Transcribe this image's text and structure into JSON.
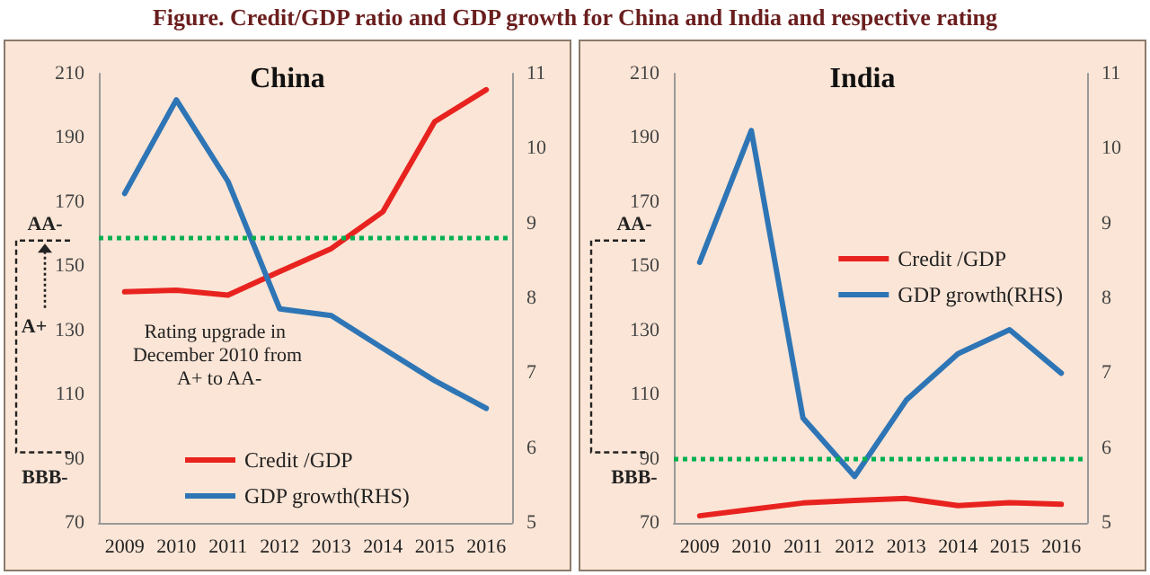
{
  "chart_data": [
    {
      "type": "line",
      "title": "Figure. Credit/GDP ratio and GDP growth for China and India and respective rating",
      "subtitle": "China",
      "categories": [
        "2009",
        "2010",
        "2011",
        "2012",
        "2013",
        "2014",
        "2015",
        "2016"
      ],
      "series": [
        {
          "name": "Credit /GDP",
          "color": "#e8231f",
          "values": [
            142,
            142.5,
            141,
            148.3,
            155.5,
            167,
            195,
            205
          ]
        },
        {
          "name": "GDP growth(RHS)",
          "color": "#2e75b6",
          "axis": "y2",
          "values": [
            9.4,
            10.65,
            9.56,
            7.86,
            7.77,
            7.33,
            6.9,
            6.53
          ]
        }
      ],
      "ylim": [
        70,
        210
      ],
      "yticks": [
        70,
        90,
        110,
        130,
        150,
        170,
        190,
        210
      ],
      "y2lim": [
        5,
        11
      ],
      "y2ticks": [
        5,
        6,
        7,
        8,
        9,
        10,
        11
      ],
      "ref_lines": [
        {
          "axis": "y",
          "value": 159,
          "color": "#00b050",
          "line_style": "dotted"
        }
      ],
      "annotations": [
        "AA-",
        "A+",
        "BBB-",
        "Rating upgrade in December 2010 from A+ to AA-"
      ],
      "legend": "bottom",
      "grid": false,
      "marker": "none",
      "line_style": "solid"
    },
    {
      "type": "line",
      "subtitle": "India",
      "categories": [
        "2009",
        "2010",
        "2011",
        "2012",
        "2013",
        "2014",
        "2015",
        "2016"
      ],
      "series": [
        {
          "name": "Credit /GDP",
          "color": "#e8231f",
          "values": [
            72.2,
            74.2,
            76.2,
            77,
            77.6,
            75.4,
            76.3,
            75.8
          ]
        },
        {
          "name": "GDP growth(RHS)",
          "color": "#2e75b6",
          "axis": "y2",
          "values": [
            8.48,
            10.24,
            6.4,
            5.62,
            6.64,
            7.26,
            7.58,
            7.0
          ]
        }
      ],
      "ylim": [
        70,
        210
      ],
      "yticks": [
        70,
        90,
        110,
        130,
        150,
        170,
        190,
        210
      ],
      "y2lim": [
        5,
        11
      ],
      "y2ticks": [
        5,
        6,
        7,
        8,
        9,
        10,
        11
      ],
      "ref_lines": [
        {
          "axis": "y",
          "value": 90,
          "color": "#00b050",
          "line_style": "dotted"
        }
      ],
      "annotations": [
        "AA-",
        "BBB-"
      ],
      "legend": "right",
      "grid": false,
      "marker": "none",
      "line_style": "solid"
    }
  ]
}
